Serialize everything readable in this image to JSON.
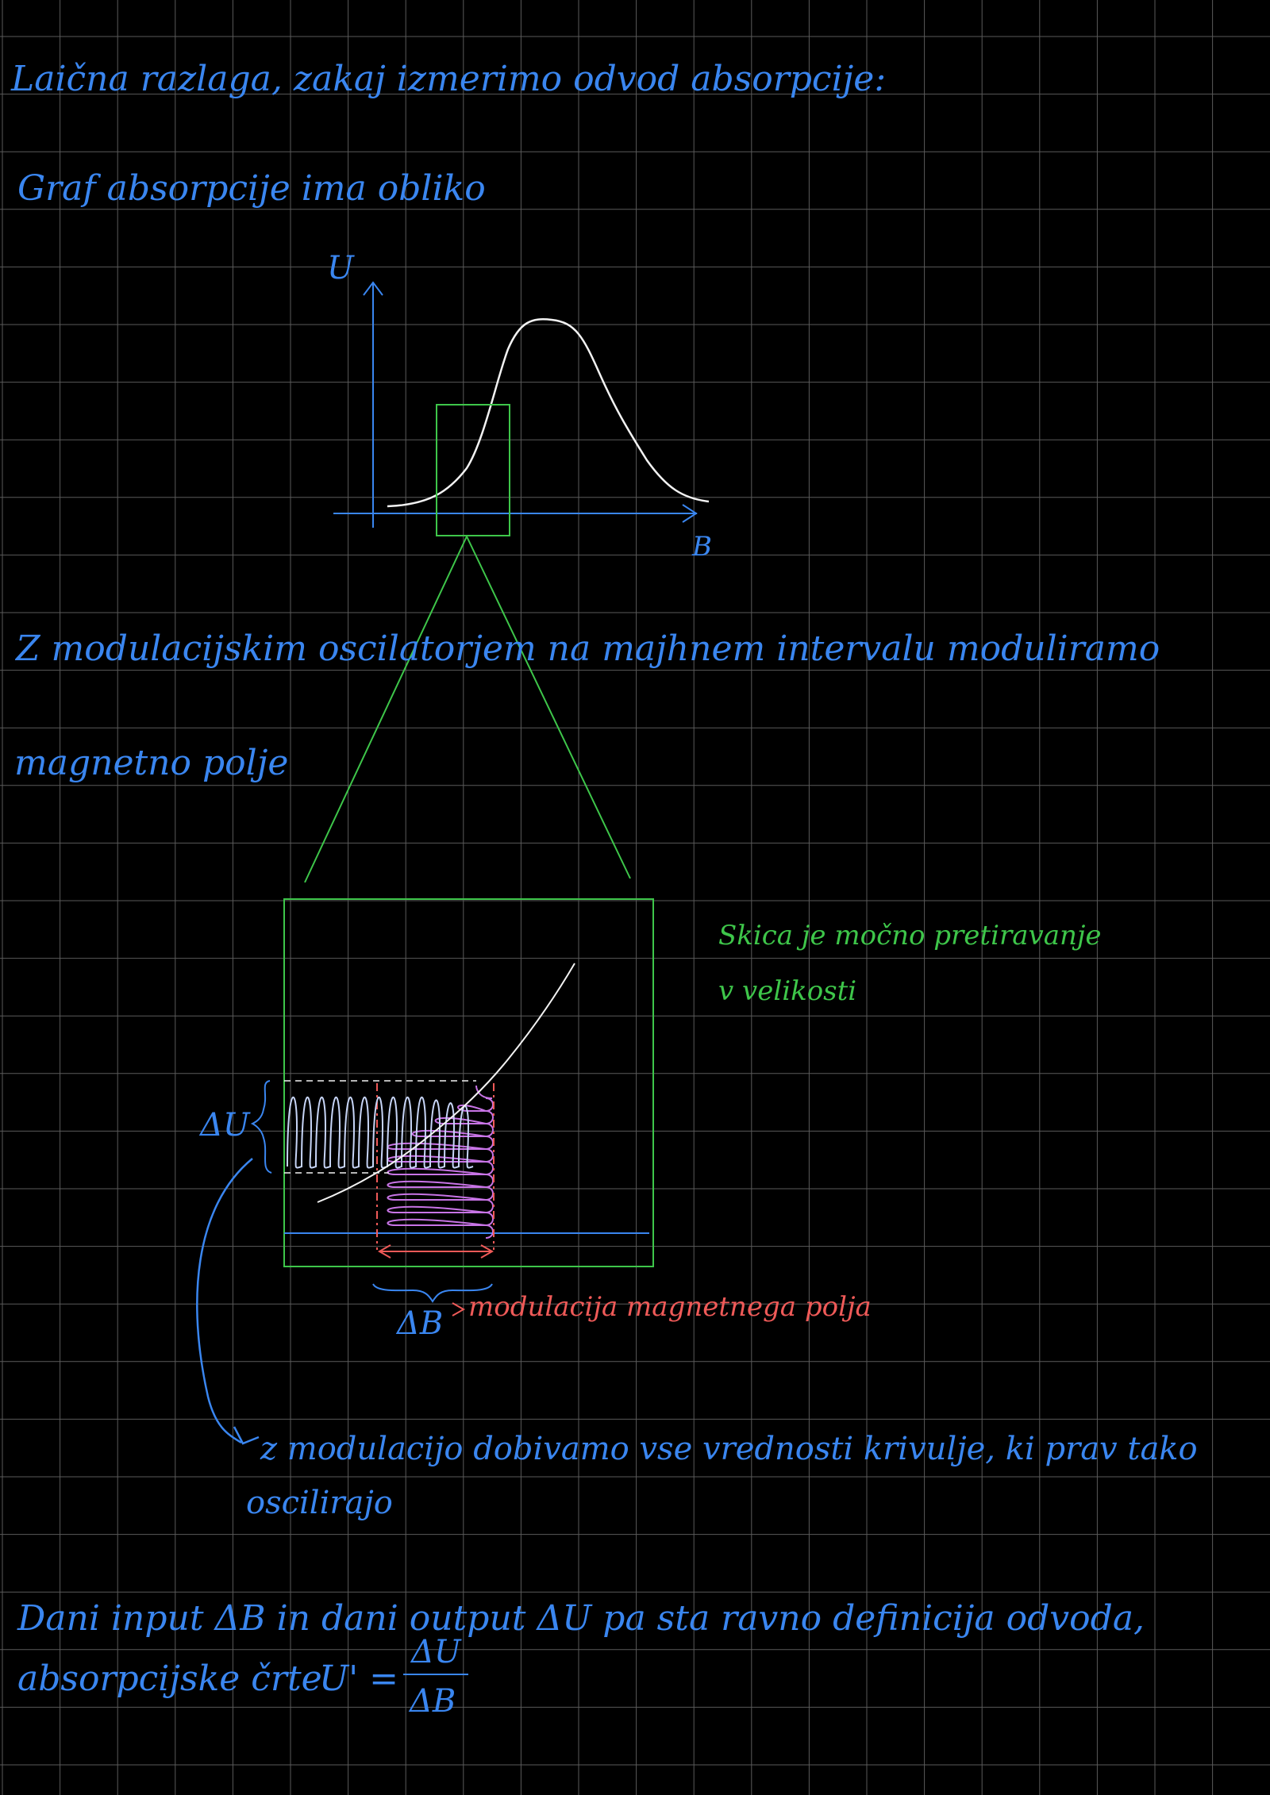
{
  "notes": {
    "line1": "Laična razlaga, zakaj izmerimo odvod absorpcije:",
    "line2": "Graf absorpcije ima obliko",
    "line3": "Z modulacijskim oscilatorjem na majhnem intervalu moduliramo",
    "line4": "magnetno polje",
    "side_note_1": "Skica je močno pretiravanje",
    "side_note_2": "v velikosti",
    "arrow_note_1": "z modulacijo dobivamo vse vrednosti krivulje, ki prav tako",
    "arrow_note_2": "oscilirajo",
    "final_1": "Dani input ΔB in dani output ΔU pa sta ravno definicija odvoda,",
    "final_2_prefix": "absorpcijske črte",
    "formula_lhs": "U' =",
    "formula_num": "ΔU",
    "formula_den": "ΔB"
  },
  "graph": {
    "y_axis_label": "U",
    "x_axis_label": "B"
  },
  "zoom": {
    "delta_u_label": "ΔU",
    "delta_b_label": "ΔB",
    "modulation_label": "modulacija magnetnega polja"
  },
  "colors": {
    "background": "#000000",
    "grid": "#5a5a5a",
    "text_blue": "#3a86f0",
    "text_green": "#3ec64a",
    "text_red": "#ef5a58",
    "curve_white": "#f2f2f2",
    "osc_light": "#c7d5f7",
    "osc_purple": "#c874e6"
  }
}
